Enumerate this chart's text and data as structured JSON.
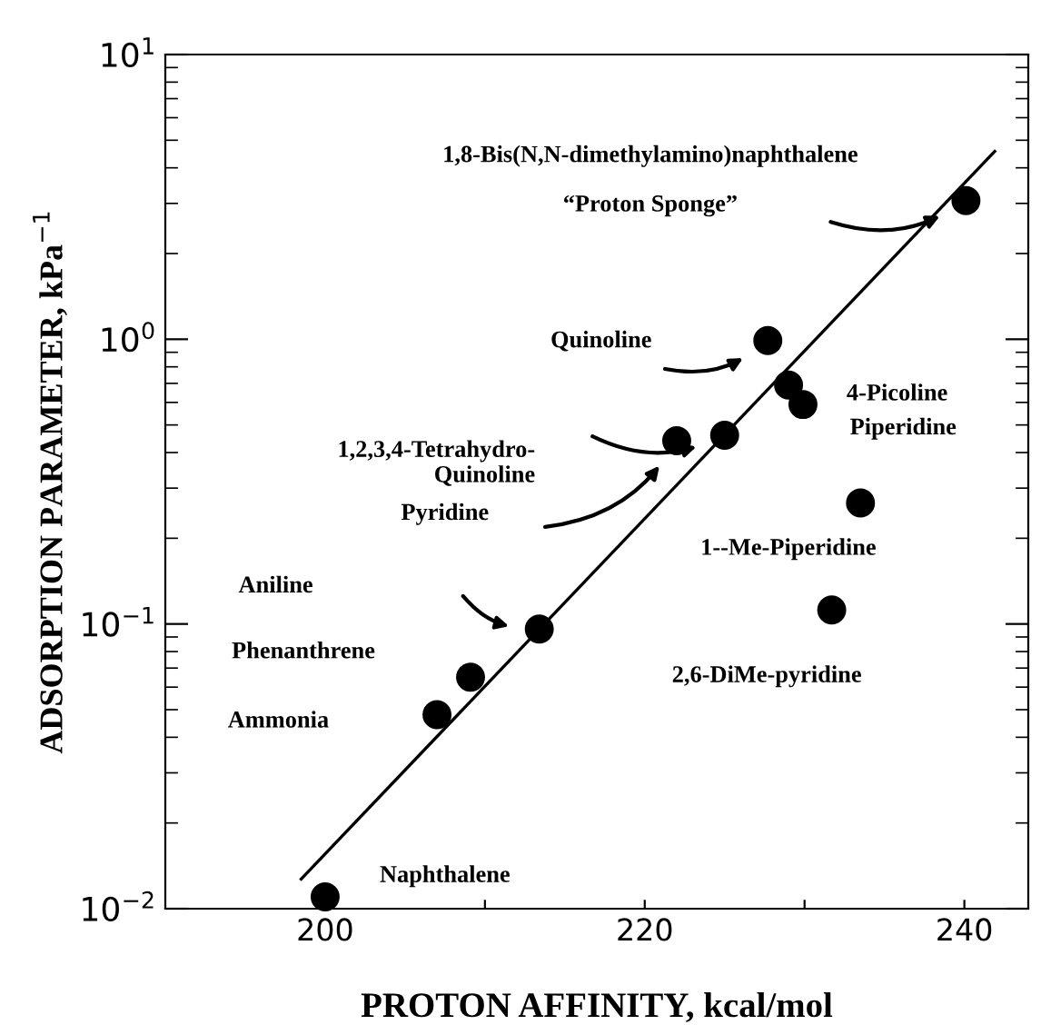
{
  "chart_data": {
    "type": "scatter",
    "xlabel": "PROTON AFFINITY, kcal/mol",
    "ylabel": "ADSORPTION PARAMETER, kPa$^{−1}$",
    "log": "y",
    "grid": false,
    "marker": "circle",
    "xlim": [
      190,
      244
    ],
    "ylim": [
      0.01,
      10
    ],
    "xticks": [
      200,
      {
        "value": 210,
        "label": null
      },
      220,
      {
        "value": 230,
        "label": null
      },
      240
    ],
    "yticks": [
      {
        "value": 0.01,
        "label": "10$^{−2}$"
      },
      {
        "value": 0.1,
        "label": "10$^{−1}$"
      },
      {
        "value": 1,
        "label": "10$^{0}$"
      },
      {
        "value": 10,
        "label": "10$^{1}$"
      }
    ],
    "series": [
      {
        "color": "#000000",
        "x": [
          200,
          207.0,
          209.1,
          213.4,
          222.0,
          225.0,
          227.7,
          229.0,
          229.9,
          233.5,
          231.7,
          240.1
        ],
        "values": [
          0.011,
          0.048,
          0.065,
          0.096,
          0.44,
          0.46,
          0.99,
          0.69,
          0.59,
          0.266,
          0.112,
          3.07
        ]
      },
      {
        "type": "line",
        "marker": "none",
        "color": "#000000",
        "x": [
          198.5,
          241.9
        ],
        "values": [
          0.0127,
          4.57
        ]
      }
    ],
    "annotations": [
      "Naphthalene",
      "Ammonia",
      "Phenanthrene",
      "Aniline",
      "Pyridine",
      "1,2,3,4-Tetrahydro-\nQuinoline",
      "Quinoline",
      "4-Picoline",
      "Piperidine",
      "1--Me-Piperidine",
      "2,6-DiMe-pyridine",
      "“Proton Sponge”",
      "1,8-Bis(N,N-dimethylamino)naphthalene"
    ]
  }
}
